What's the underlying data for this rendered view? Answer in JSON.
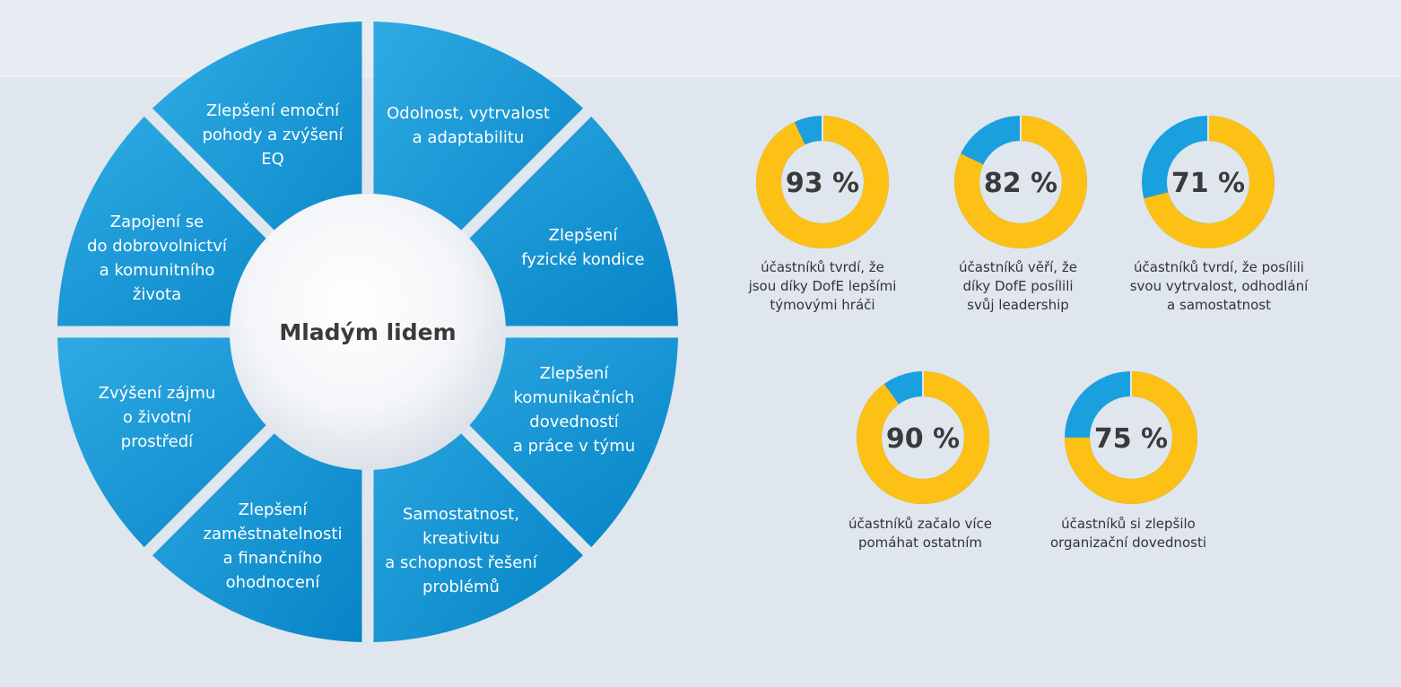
{
  "wheel": {
    "center_title": "Mladým lidem",
    "segments": [
      {
        "lines": [
          "Odolnost, vytrvalost",
          "a adaptabilitu"
        ]
      },
      {
        "lines": [
          "Zlepšení",
          "fyzické kondice"
        ]
      },
      {
        "lines": [
          "Zlepšení",
          "komunikačních",
          "dovedností",
          "a práce v týmu"
        ]
      },
      {
        "lines": [
          "Samostatnost,",
          "kreativitu",
          "a schopnost řešení",
          "problémů"
        ]
      },
      {
        "lines": [
          "Zlepšení",
          "zaměstnatelnosti",
          "a finančního",
          "ohodnocení"
        ]
      },
      {
        "lines": [
          "Zvýšení zájmu",
          "o životní",
          "prostředí"
        ]
      },
      {
        "lines": [
          "Zapojení se",
          "do dobrovolnictví",
          "a komunitního",
          "života"
        ]
      },
      {
        "lines": [
          "Zlepšení emoční",
          "pohody a zvýšení",
          "EQ"
        ]
      }
    ]
  },
  "colors": {
    "background": "#dfe6ee",
    "segment_light": "#2aa6e0",
    "segment_dark": "#0a86c7",
    "donut_yellow": "#fdc014",
    "donut_blue": "#1ba0df"
  },
  "chart_data": [
    {
      "type": "pie",
      "value": 93,
      "label": "93 %",
      "caption": "účastníků tvrdí, že\njsou díky DofE lepšími\ntýmovými hráči"
    },
    {
      "type": "pie",
      "value": 82,
      "label": "82 %",
      "caption": "účastníků věří, že\ndíky DofE posílili\nsvůj leadership"
    },
    {
      "type": "pie",
      "value": 71,
      "label": "71 %",
      "caption": "účastníků tvrdí, že posílili\nsvou vytrvalost, odhodlání\na samostatnost"
    },
    {
      "type": "pie",
      "value": 90,
      "label": "90 %",
      "caption": "účastníků začalo více\npomáhat ostatním"
    },
    {
      "type": "pie",
      "value": 75,
      "label": "75 %",
      "caption": "účastníků si zlepšilo\norganizační dovednosti"
    }
  ]
}
